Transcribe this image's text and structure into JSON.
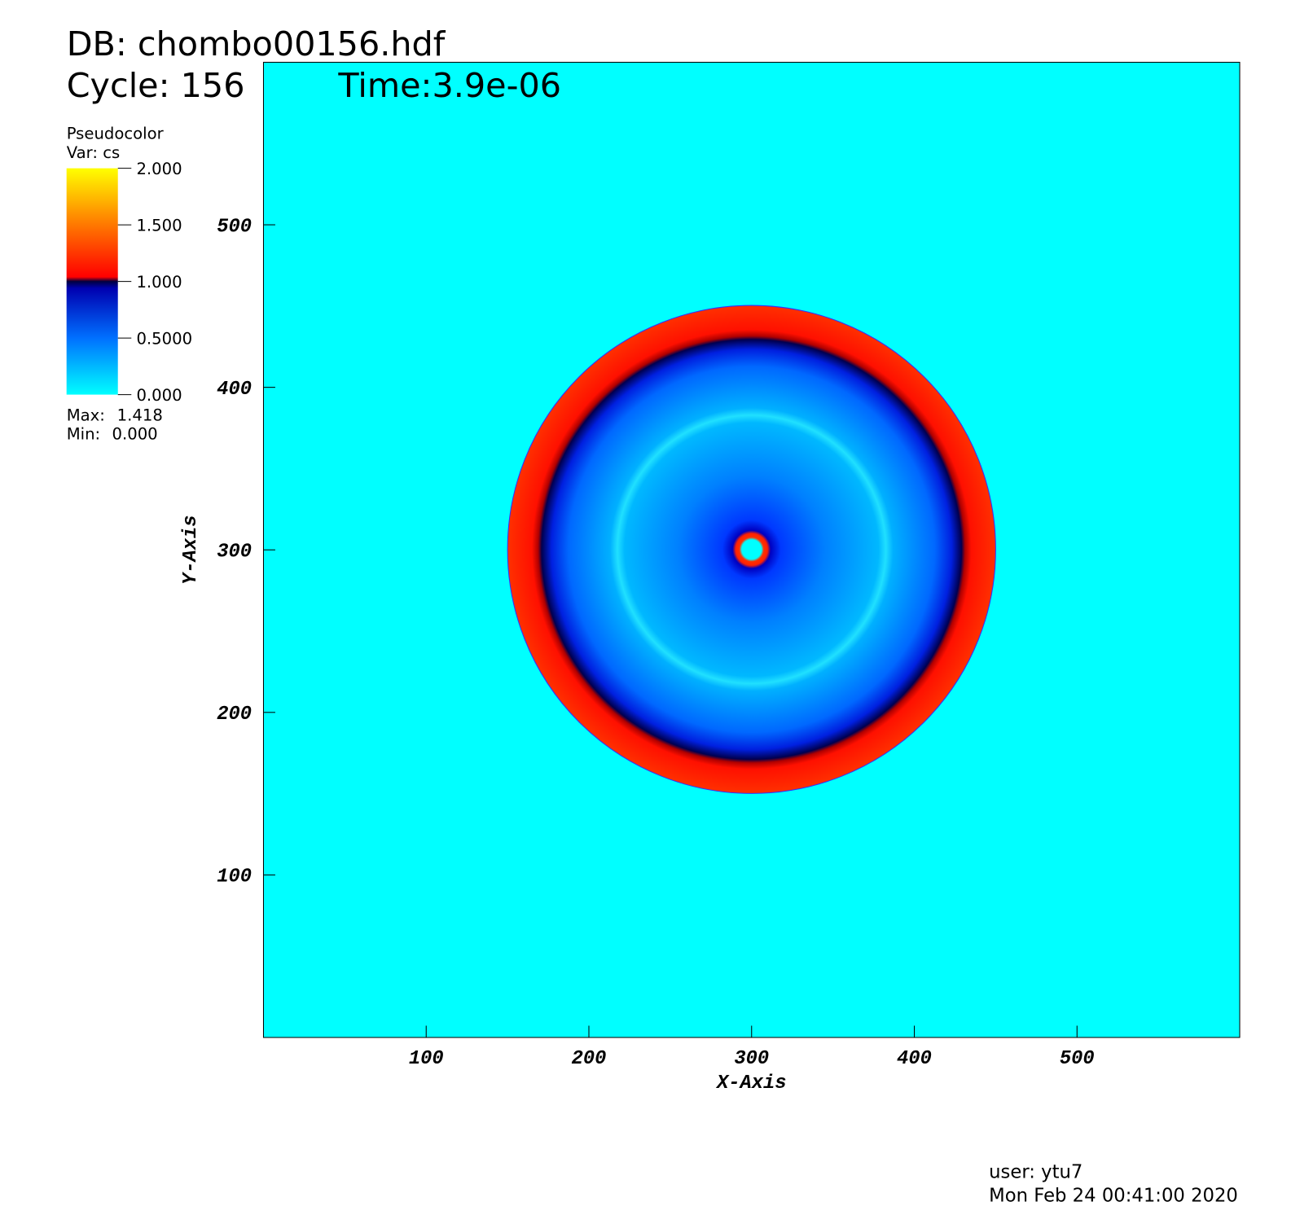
{
  "chart_data": {
    "type": "heatmap",
    "title_lines": [
      "DB: chombo00156.hdf",
      "Cycle: 156",
      "Time:3.9e-06"
    ],
    "legend": {
      "plot": "Pseudocolor",
      "variable": "Var: cs",
      "ticks": [
        {
          "value": 2,
          "label": "2.000"
        },
        {
          "value": 1.5,
          "label": "1.500"
        },
        {
          "value": 1,
          "label": "1.000"
        },
        {
          "value": 0.5,
          "label": "0.5000"
        },
        {
          "value": 0,
          "label": "0.000"
        }
      ],
      "max_text": "Max:",
      "max": 1.418,
      "min_text": "Min:",
      "min": {
        "value": 0,
        "label": "0.000"
      }
    },
    "xlabel": "X-Axis",
    "ylabel": "Y-Axis",
    "xlim": [
      0,
      600
    ],
    "ylim": [
      0,
      600
    ],
    "xticks": [
      100,
      200,
      300,
      400,
      500
    ],
    "yticks": [
      100,
      200,
      300,
      400,
      500
    ],
    "footer": [
      "user: ytu7",
      "Mon Feb 24 00:41:00 2020"
    ]
  }
}
